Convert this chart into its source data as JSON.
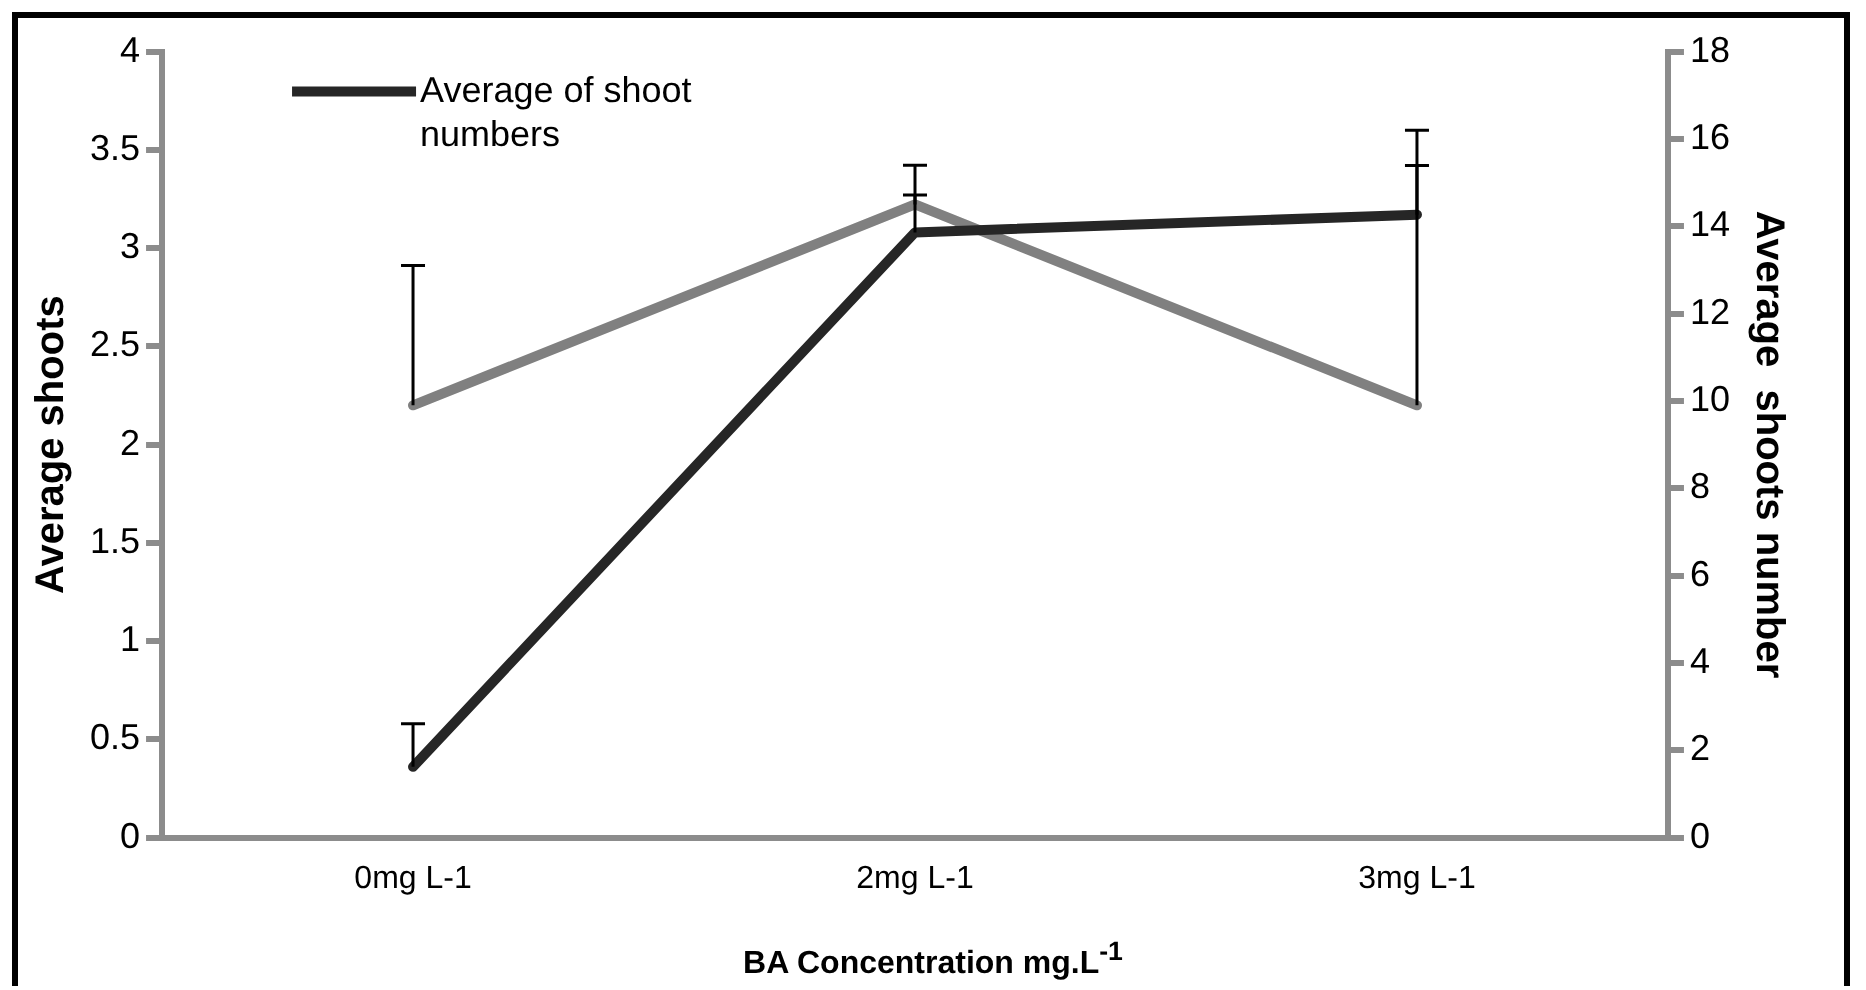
{
  "chart_data": {
    "type": "line",
    "xlabel": "BA Concentration mg.L$^{-1}$",
    "ylabel": "Average shoots",
    "y2label": "Average  shoots number",
    "categories": [
      "0mg L-1",
      "2mg L-1",
      "3mg L-1"
    ],
    "series": [
      {
        "name": "Average of shoot numbers",
        "color": "#262626",
        "values": [
          0.36,
          3.08,
          3.17
        ],
        "errors": [
          [
            0.36,
            0.58
          ],
          [
            3.08,
            3.27
          ],
          [
            3.17,
            3.42
          ]
        ]
      },
      {
        "color": "#808080",
        "axis": "y2",
        "values": [
          9.9,
          14.5,
          9.9
        ],
        "errors": [
          [
            9.9,
            13.1
          ],
          [
            14.5,
            15.4
          ],
          [
            9.9,
            16.2
          ]
        ]
      }
    ],
    "ylim": [
      0,
      4
    ],
    "yticks": [
      0,
      0.5,
      1,
      1.5,
      2,
      2.5,
      3,
      3.5,
      4
    ],
    "y2lim": [
      0,
      18
    ],
    "y2ticks": [
      0,
      2,
      4,
      6,
      8,
      10,
      12,
      14,
      16,
      18
    ],
    "grid": false,
    "legend": "top left",
    "marker": "none",
    "line_style": "solid"
  }
}
